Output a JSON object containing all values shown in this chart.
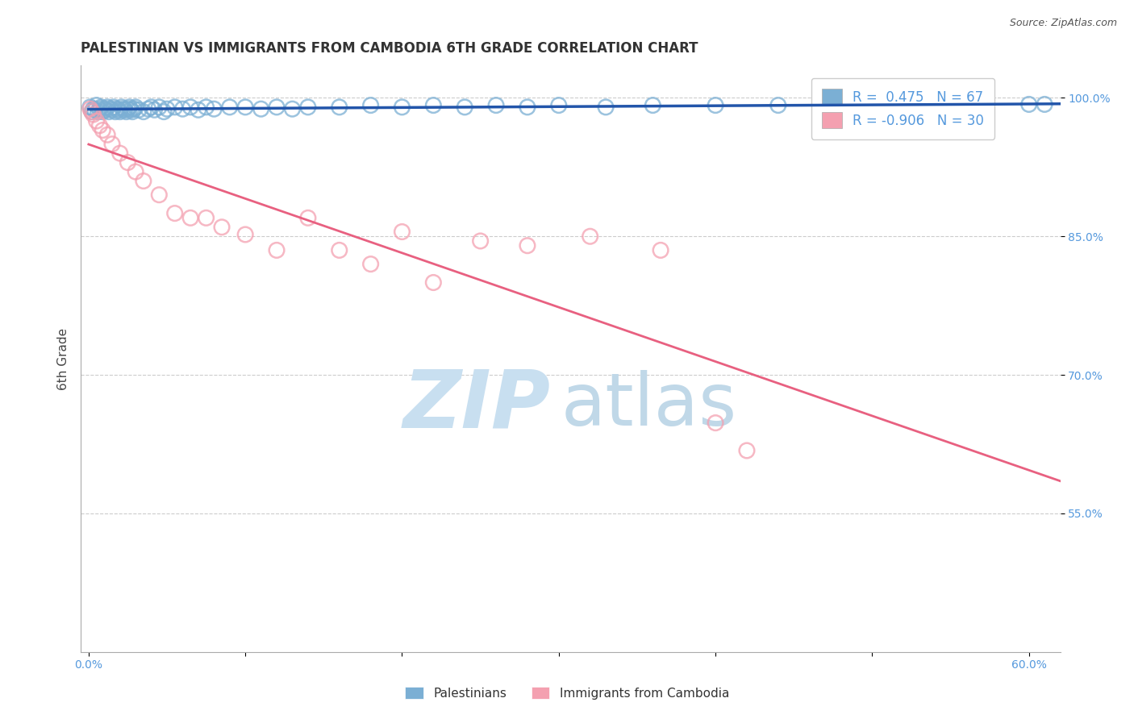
{
  "title": "PALESTINIAN VS IMMIGRANTS FROM CAMBODIA 6TH GRADE CORRELATION CHART",
  "source": "Source: ZipAtlas.com",
  "ylabel": "6th Grade",
  "xlim": [
    -0.5,
    62
  ],
  "ylim": [
    0.4,
    1.035
  ],
  "blue_R": 0.475,
  "blue_N": 67,
  "pink_R": -0.906,
  "pink_N": 30,
  "legend_label_blue": "Palestinians",
  "legend_label_pink": "Immigrants from Cambodia",
  "blue_color": "#7BAFD4",
  "pink_color": "#F4A0B0",
  "blue_line_color": "#2255AA",
  "pink_line_color": "#E86080",
  "watermark_zip_color": "#C8DFF0",
  "watermark_atlas_color": "#C0D8E8",
  "grid_color": "#CCCCCC",
  "tick_label_color": "#5599DD",
  "title_color": "#333333",
  "source_color": "#555555",
  "y_ticks": [
    0.55,
    0.7,
    0.85,
    1.0
  ],
  "y_tick_labels": [
    "55.0%",
    "70.0%",
    "85.0%",
    "100.0%"
  ],
  "x_ticks": [
    0,
    10,
    20,
    30,
    40,
    50,
    60
  ],
  "x_tick_labels": [
    "0.0%",
    "",
    "",
    "",
    "",
    "",
    "60.0%"
  ],
  "blue_scatter_x": [
    0.1,
    0.2,
    0.3,
    0.4,
    0.5,
    0.6,
    0.7,
    0.8,
    0.9,
    1.0,
    1.1,
    1.2,
    1.3,
    1.4,
    1.5,
    1.6,
    1.7,
    1.8,
    1.9,
    2.0,
    2.1,
    2.2,
    2.3,
    2.4,
    2.5,
    2.6,
    2.7,
    2.8,
    2.9,
    3.0,
    3.2,
    3.5,
    3.8,
    4.0,
    4.2,
    4.5,
    4.8,
    5.0,
    5.5,
    6.0,
    6.5,
    7.0,
    7.5,
    8.0,
    9.0,
    10.0,
    11.0,
    12.0,
    13.0,
    14.0,
    16.0,
    18.0,
    20.0,
    22.0,
    24.0,
    26.0,
    28.0,
    30.0,
    33.0,
    36.0,
    40.0,
    44.0,
    48.0,
    52.0,
    56.0,
    60.0,
    61.0
  ],
  "blue_scatter_y": [
    0.99,
    0.985,
    0.988,
    0.987,
    0.992,
    0.985,
    0.988,
    0.99,
    0.985,
    0.988,
    0.987,
    0.99,
    0.985,
    0.988,
    0.987,
    0.99,
    0.985,
    0.988,
    0.987,
    0.985,
    0.99,
    0.988,
    0.987,
    0.985,
    0.988,
    0.99,
    0.987,
    0.985,
    0.988,
    0.99,
    0.987,
    0.985,
    0.988,
    0.99,
    0.987,
    0.99,
    0.985,
    0.988,
    0.99,
    0.988,
    0.99,
    0.987,
    0.99,
    0.988,
    0.99,
    0.99,
    0.988,
    0.99,
    0.988,
    0.99,
    0.99,
    0.992,
    0.99,
    0.992,
    0.99,
    0.992,
    0.99,
    0.992,
    0.99,
    0.992,
    0.992,
    0.992,
    0.99,
    0.992,
    0.992,
    0.993,
    0.993
  ],
  "pink_scatter_x": [
    0.1,
    0.2,
    0.3,
    0.5,
    0.7,
    0.9,
    1.2,
    1.5,
    2.0,
    2.5,
    3.0,
    3.5,
    4.5,
    5.5,
    6.5,
    7.5,
    8.5,
    10.0,
    12.0,
    14.0,
    16.0,
    18.0,
    20.0,
    22.0,
    25.0,
    28.0,
    32.0,
    36.5,
    40.0,
    42.0
  ],
  "pink_scatter_y": [
    0.988,
    0.985,
    0.982,
    0.975,
    0.97,
    0.965,
    0.96,
    0.95,
    0.94,
    0.93,
    0.92,
    0.91,
    0.895,
    0.875,
    0.87,
    0.87,
    0.86,
    0.852,
    0.835,
    0.87,
    0.835,
    0.82,
    0.855,
    0.8,
    0.845,
    0.84,
    0.85,
    0.835,
    0.648,
    0.618
  ]
}
